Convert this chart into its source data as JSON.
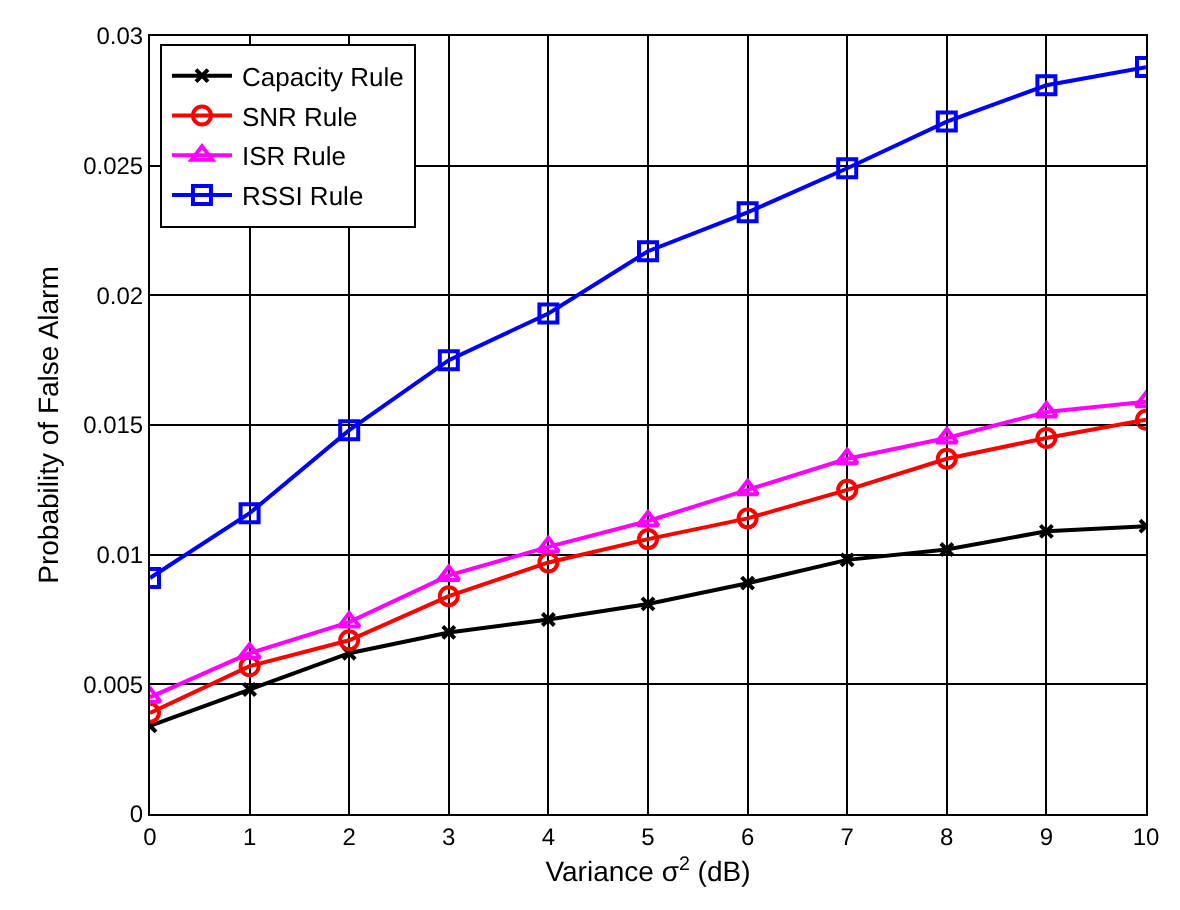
{
  "chart_data": {
    "type": "line",
    "xlabel": "Variance σ$^{2}$ (dB)",
    "ylabel": "Probability of False Alarm",
    "x": [
      0,
      1,
      2,
      3,
      4,
      5,
      6,
      7,
      8,
      9,
      10
    ],
    "xlim": [
      0,
      10
    ],
    "xticks": [
      0,
      1,
      2,
      3,
      4,
      5,
      6,
      7,
      8,
      9,
      10
    ],
    "ylim": [
      0,
      0.03
    ],
    "yticks": [
      0,
      0.005,
      0.01,
      0.015,
      0.02,
      0.025,
      0.03
    ],
    "grid": true,
    "legend": "top left",
    "line_style": "solid",
    "series": [
      {
        "name": "Capacity Rule",
        "color": "#000000",
        "marker": "cross",
        "values": [
          0.0034,
          0.0048,
          0.0062,
          0.007,
          0.0075,
          0.0081,
          0.0089,
          0.0098,
          0.0102,
          0.0109,
          0.0111
        ]
      },
      {
        "name": "SNR Rule",
        "color": "#ff0000",
        "marker": "circle",
        "values": [
          0.0039,
          0.0057,
          0.0067,
          0.0084,
          0.0097,
          0.0106,
          0.0114,
          0.0125,
          0.0137,
          0.0145,
          0.0152
        ]
      },
      {
        "name": "ISR Rule",
        "color": "#ff00ff",
        "marker": "triangle",
        "values": [
          0.0045,
          0.0062,
          0.0074,
          0.0092,
          0.0103,
          0.0113,
          0.0125,
          0.0137,
          0.0145,
          0.0155,
          0.0159
        ]
      },
      {
        "name": "RSSI Rule",
        "color": "#0000ff",
        "marker": "square",
        "values": [
          0.0091,
          0.0116,
          0.0148,
          0.0175,
          0.0193,
          0.0217,
          0.0232,
          0.0249,
          0.0267,
          0.0281,
          0.0288
        ]
      }
    ]
  }
}
